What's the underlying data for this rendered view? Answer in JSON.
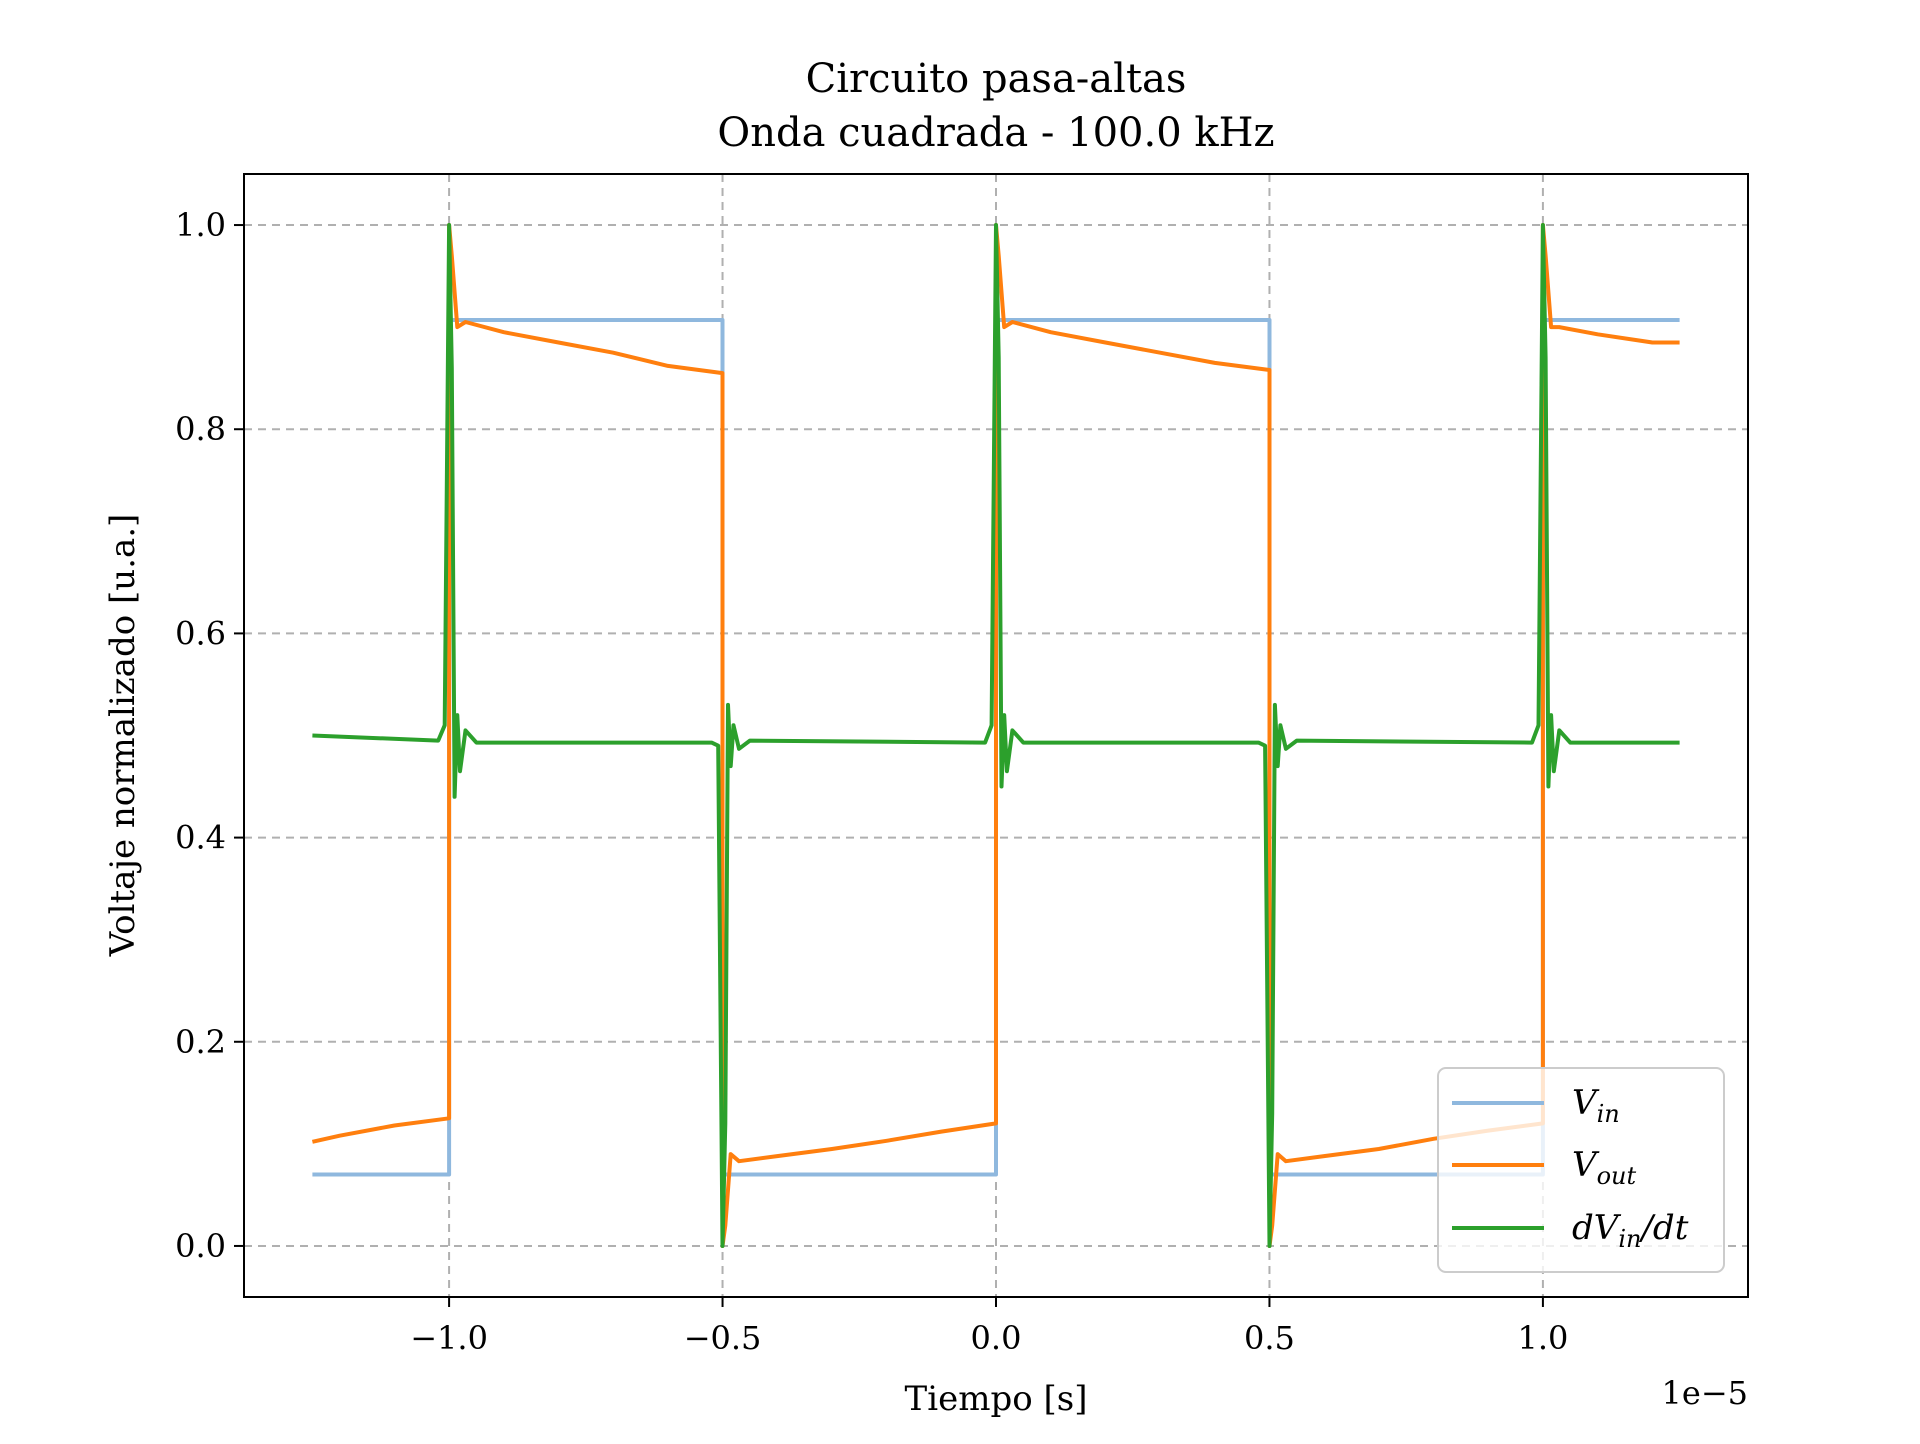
{
  "chart_data": {
    "type": "line",
    "title_line1": "Circuito pasa-altas",
    "title_line2": "Onda cuadrada - 100.0 kHz",
    "xlabel": "Tiempo [s]",
    "ylabel": "Voltaje normalizado [u.a.]",
    "x_offset_text": "1e−5",
    "x_scale": 1e-05,
    "xlim": [
      -1.375,
      1.375
    ],
    "ylim": [
      -0.05,
      1.05
    ],
    "xticks": [
      -1.0,
      -0.5,
      0.0,
      0.5,
      1.0
    ],
    "xtick_labels": [
      "−1.0",
      "−0.5",
      "0.0",
      "0.5",
      "1.0"
    ],
    "yticks": [
      0.0,
      0.2,
      0.4,
      0.6,
      0.8,
      1.0
    ],
    "ytick_labels": [
      "0.0",
      "0.2",
      "0.4",
      "0.6",
      "0.8",
      "1.0"
    ],
    "grid": true,
    "legend_position": "lower-right",
    "legend": {
      "vin_main": "V",
      "vin_sub": "in",
      "vout_main": "V",
      "vout_sub": "out",
      "dv_pre": "dV",
      "dv_sub": "in",
      "dv_post": "/dt"
    },
    "series": [
      {
        "key": "vin",
        "color": "#8fb8de",
        "x": [
          -1.25,
          -1.0,
          -1.0,
          -0.5,
          -0.5,
          0.0,
          0.0,
          0.5,
          0.5,
          1.0,
          1.0,
          1.25
        ],
        "y": [
          0.07,
          0.07,
          0.907,
          0.907,
          0.07,
          0.07,
          0.907,
          0.907,
          0.07,
          0.07,
          0.907,
          0.907
        ]
      },
      {
        "key": "vout",
        "color": "#ff7f0e",
        "x": [
          -1.25,
          -1.2,
          -1.1,
          -1.0,
          -1.0,
          -0.995,
          -0.985,
          -0.97,
          -0.9,
          -0.8,
          -0.7,
          -0.6,
          -0.5,
          -0.5,
          -0.495,
          -0.485,
          -0.47,
          -0.4,
          -0.3,
          -0.2,
          -0.1,
          0.0,
          0.0,
          0.005,
          0.015,
          0.03,
          0.1,
          0.2,
          0.3,
          0.4,
          0.5,
          0.5,
          0.505,
          0.515,
          0.53,
          0.6,
          0.7,
          0.8,
          0.9,
          1.0,
          1.0,
          1.005,
          1.015,
          1.03,
          1.1,
          1.2,
          1.25
        ],
        "y": [
          0.102,
          0.108,
          0.118,
          0.125,
          1.0,
          0.97,
          0.9,
          0.905,
          0.895,
          0.885,
          0.875,
          0.862,
          0.855,
          0.0,
          0.02,
          0.09,
          0.083,
          0.088,
          0.095,
          0.103,
          0.112,
          0.12,
          1.0,
          0.97,
          0.9,
          0.905,
          0.895,
          0.885,
          0.875,
          0.865,
          0.858,
          0.0,
          0.02,
          0.09,
          0.083,
          0.088,
          0.095,
          0.105,
          0.113,
          0.12,
          1.0,
          0.97,
          0.9,
          0.9,
          0.893,
          0.885,
          0.885
        ]
      },
      {
        "key": "dvdt",
        "color": "#2ca02c",
        "x": [
          -1.25,
          -1.02,
          -1.008,
          -1.0,
          -0.995,
          -0.99,
          -0.985,
          -0.98,
          -0.97,
          -0.95,
          -0.52,
          -0.508,
          -0.5,
          -0.495,
          -0.49,
          -0.485,
          -0.48,
          -0.47,
          -0.45,
          -0.02,
          -0.008,
          0.0,
          0.005,
          0.01,
          0.015,
          0.02,
          0.03,
          0.05,
          0.48,
          0.492,
          0.5,
          0.505,
          0.51,
          0.515,
          0.52,
          0.53,
          0.55,
          0.98,
          0.992,
          1.0,
          1.005,
          1.01,
          1.015,
          1.02,
          1.03,
          1.05,
          1.25
        ],
        "y": [
          0.5,
          0.495,
          0.51,
          1.0,
          0.86,
          0.44,
          0.52,
          0.465,
          0.505,
          0.493,
          0.493,
          0.49,
          0.0,
          0.12,
          0.53,
          0.47,
          0.51,
          0.487,
          0.495,
          0.493,
          0.51,
          1.0,
          0.87,
          0.45,
          0.52,
          0.465,
          0.505,
          0.493,
          0.493,
          0.49,
          0.0,
          0.13,
          0.53,
          0.47,
          0.51,
          0.487,
          0.495,
          0.493,
          0.51,
          1.0,
          0.87,
          0.45,
          0.52,
          0.465,
          0.505,
          0.493,
          0.493
        ]
      }
    ]
  }
}
